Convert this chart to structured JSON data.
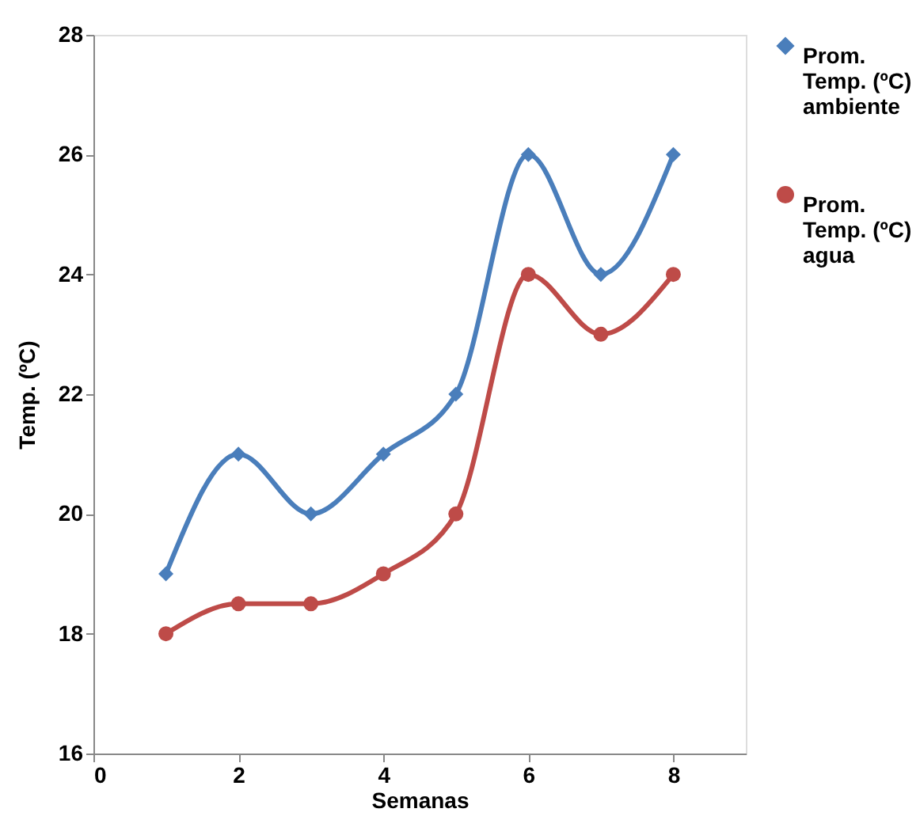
{
  "chart_data": {
    "type": "line",
    "xlabel": "Semanas",
    "ylabel": "Temp. (ºC)",
    "x": [
      1,
      2,
      3,
      4,
      5,
      6,
      7,
      8
    ],
    "series": [
      {
        "name": "Prom. Temp. (ºC) ambiente",
        "color": "#4a7ebb",
        "marker": "diamond",
        "values": [
          19,
          21,
          20,
          21,
          22,
          26,
          24,
          26
        ]
      },
      {
        "name": "Prom. Temp. (ºC) agua",
        "color": "#be4b48",
        "marker": "circle",
        "values": [
          18,
          18.5,
          18.5,
          19,
          20,
          24,
          23,
          24
        ]
      }
    ],
    "xlim": [
      0,
      9
    ],
    "xticks": [
      0,
      2,
      4,
      6,
      8
    ],
    "ylim": [
      16,
      28
    ],
    "yticks": [
      16,
      18,
      20,
      22,
      24,
      26,
      28
    ],
    "grid": false,
    "legend": "right",
    "line_style": "solid"
  }
}
